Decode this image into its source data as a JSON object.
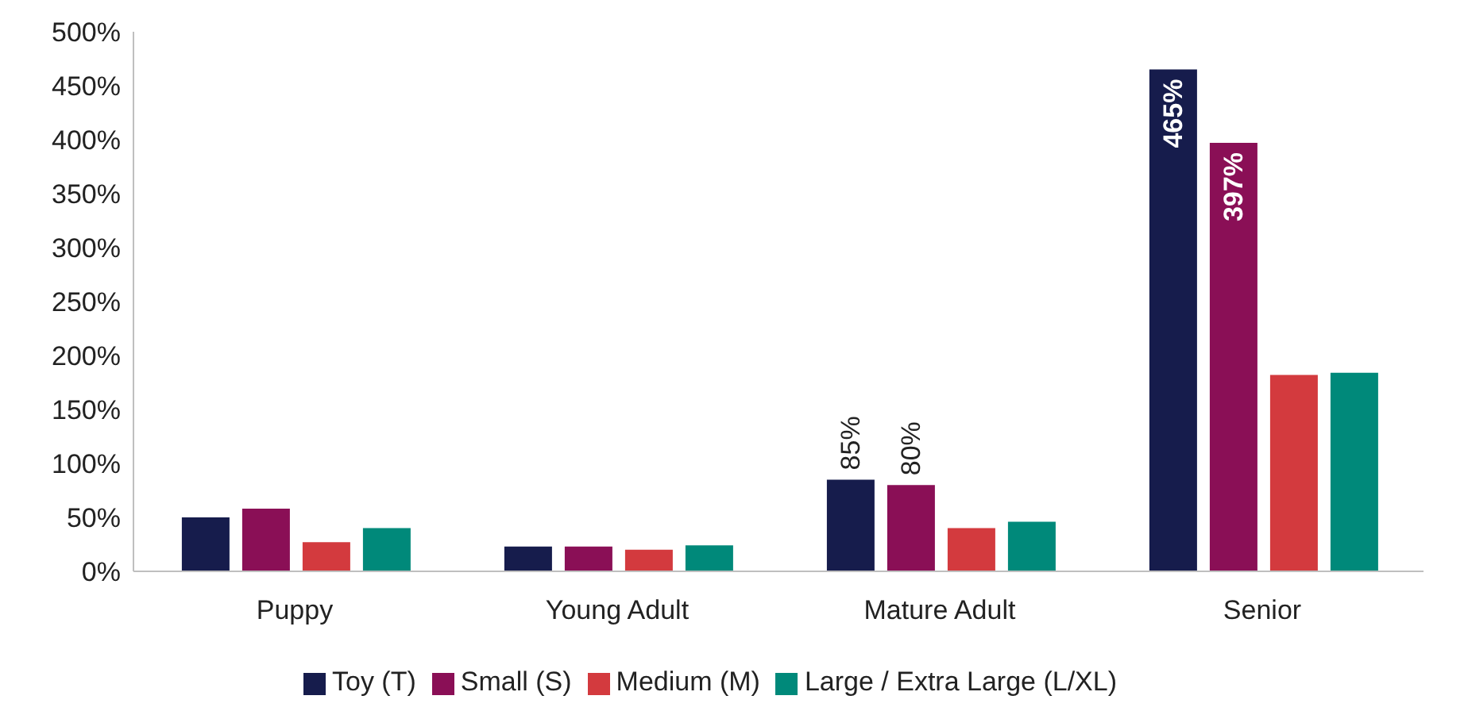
{
  "chart_data": {
    "type": "bar",
    "categories": [
      "Puppy",
      "Young Adult",
      "Mature Adult",
      "Senior"
    ],
    "series": [
      {
        "name": "Toy (T)",
        "color": "#161c4c",
        "values": [
          50,
          23,
          85,
          465
        ],
        "value_labels": [
          null,
          null,
          "85%",
          "465%"
        ]
      },
      {
        "name": "Small (S)",
        "color": "#8a0f56",
        "values": [
          58,
          23,
          80,
          397
        ],
        "value_labels": [
          null,
          null,
          "80%",
          "397%"
        ]
      },
      {
        "name": "Medium (M)",
        "color": "#d33a3e",
        "values": [
          27,
          20,
          40,
          182
        ],
        "value_labels": [
          null,
          null,
          null,
          null
        ]
      },
      {
        "name": "Large / Extra Large (L/XL)",
        "color": "#00897a",
        "values": [
          40,
          24,
          46,
          184
        ],
        "value_labels": [
          null,
          null,
          null,
          null
        ]
      }
    ],
    "ylim": [
      0,
      500
    ],
    "yticks": [
      {
        "value": 0,
        "label": "0%"
      },
      {
        "value": 50,
        "label": "50%"
      },
      {
        "value": 100,
        "label": "100%"
      },
      {
        "value": 150,
        "label": "150%"
      },
      {
        "value": 200,
        "label": "200%"
      },
      {
        "value": 250,
        "label": "250%"
      },
      {
        "value": 300,
        "label": "300%"
      },
      {
        "value": 350,
        "label": "350%"
      },
      {
        "value": 400,
        "label": "400%"
      },
      {
        "value": 450,
        "label": "450%"
      },
      {
        "value": 500,
        "label": "500%"
      }
    ],
    "legend": "bottom"
  }
}
